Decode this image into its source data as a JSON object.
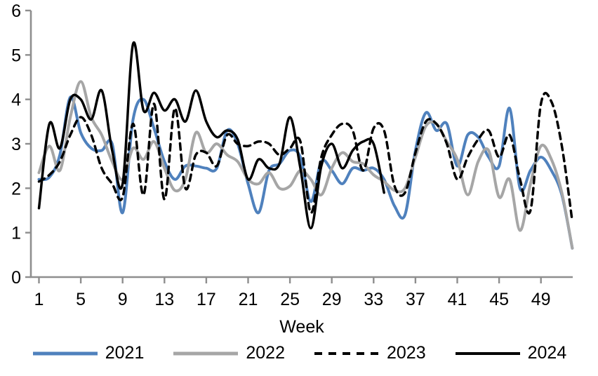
{
  "chart_data": {
    "type": "line",
    "title": "",
    "xlabel": "Week",
    "ylabel": "",
    "ylim": [
      0,
      6
    ],
    "y_ticks": [
      0,
      1,
      2,
      3,
      4,
      5,
      6
    ],
    "x_ticks": [
      1,
      5,
      9,
      13,
      17,
      21,
      25,
      29,
      33,
      37,
      41,
      45,
      49
    ],
    "x_range": [
      1,
      52
    ],
    "grid": false,
    "legend_position": "bottom",
    "axis_color": "#8e8e8e",
    "smoothing": "spline",
    "series": [
      {
        "name": "2021",
        "color": "#4F81BD",
        "style": "solid",
        "line_width": 4,
        "start_week": 1,
        "values": [
          2.2,
          2.25,
          2.75,
          4.05,
          3.25,
          2.9,
          2.85,
          3.0,
          1.45,
          3.55,
          4.0,
          3.35,
          2.6,
          2.2,
          2.5,
          2.5,
          2.45,
          2.45,
          3.3,
          3.0,
          2.1,
          1.45,
          2.4,
          2.55,
          2.85,
          2.7,
          1.7,
          2.6,
          2.4,
          2.1,
          2.45,
          2.4,
          2.45,
          2.2,
          1.6,
          1.4,
          2.85,
          3.7,
          3.3,
          3.45,
          2.5,
          3.2,
          3.15,
          2.7,
          2.5,
          3.8,
          2.0,
          2.4,
          2.7,
          2.4,
          1.85,
          0.65
        ]
      },
      {
        "name": "2022",
        "color": "#A6A6A6",
        "style": "solid",
        "line_width": 4,
        "start_week": 1,
        "values": [
          2.35,
          2.95,
          2.4,
          3.6,
          4.4,
          3.6,
          3.2,
          2.6,
          2.2,
          2.9,
          2.65,
          3.05,
          2.45,
          1.95,
          2.2,
          3.25,
          2.8,
          3.0,
          2.75,
          2.6,
          2.2,
          2.1,
          2.35,
          2.0,
          2.05,
          2.4,
          2.2,
          1.85,
          2.45,
          2.8,
          2.6,
          2.55,
          2.3,
          2.15,
          1.95,
          2.0,
          2.7,
          3.4,
          3.45,
          3.05,
          2.65,
          1.85,
          2.6,
          2.85,
          1.8,
          2.2,
          1.05,
          2.1,
          2.95,
          2.65,
          1.9,
          0.65
        ]
      },
      {
        "name": "2023",
        "color": "#000000",
        "style": "dashed",
        "line_width": 3.5,
        "start_week": 1,
        "values": [
          2.15,
          2.3,
          2.6,
          3.2,
          3.6,
          3.2,
          2.45,
          2.1,
          1.8,
          3.45,
          1.85,
          3.9,
          1.75,
          3.8,
          2.0,
          2.75,
          2.8,
          2.5,
          3.2,
          3.0,
          2.95,
          3.05,
          3.0,
          2.75,
          2.9,
          3.05,
          1.45,
          2.7,
          3.2,
          3.45,
          3.3,
          2.4,
          3.35,
          3.3,
          2.05,
          1.9,
          2.8,
          3.5,
          3.45,
          3.0,
          2.2,
          2.7,
          3.1,
          3.3,
          2.7,
          3.2,
          2.2,
          1.5,
          3.9,
          3.95,
          2.95,
          1.25
        ]
      },
      {
        "name": "2024",
        "color": "#000000",
        "style": "solid",
        "line_width": 3.5,
        "start_week": 1,
        "values": [
          1.55,
          3.45,
          2.9,
          4.0,
          4.0,
          3.55,
          4.2,
          2.85,
          2.1,
          5.25,
          3.75,
          4.15,
          3.75,
          4.0,
          3.5,
          4.2,
          3.5,
          3.15,
          3.3,
          3.1,
          2.2,
          2.65,
          2.45,
          2.55,
          3.6,
          2.45,
          1.1,
          2.5,
          3.0,
          2.45,
          2.85,
          3.05,
          3.0,
          1.9
        ]
      }
    ]
  }
}
